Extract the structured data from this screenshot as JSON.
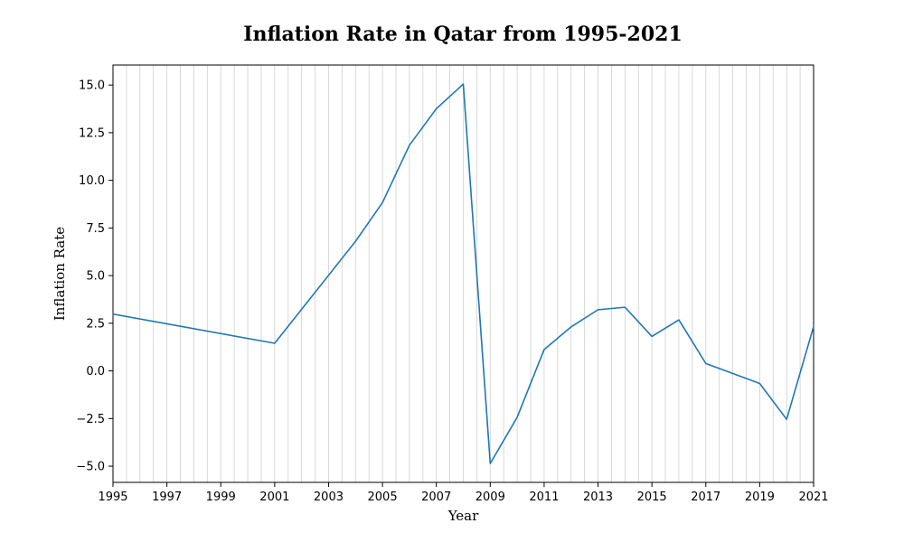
{
  "chart_data": {
    "type": "line",
    "title": "Inflation Rate in Qatar from 1995-2021",
    "xlabel": "Year",
    "ylabel": "Inflation Rate",
    "xlim": [
      1995,
      2021
    ],
    "ylim": [
      -5.85,
      16.05
    ],
    "grid": {
      "x": true,
      "y": false,
      "x_minor_step": 0.5
    },
    "x_ticks": [
      1995,
      1997,
      1999,
      2001,
      2003,
      2005,
      2007,
      2009,
      2011,
      2013,
      2015,
      2017,
      2019,
      2021
    ],
    "y_ticks": [
      -5.0,
      -2.5,
      0.0,
      2.5,
      5.0,
      7.5,
      10.0,
      12.5,
      15.0
    ],
    "y_tick_labels": [
      "−5.0",
      "−2.5",
      "0.0",
      "2.5",
      "5.0",
      "7.5",
      "10.0",
      "12.5",
      "15.0"
    ],
    "series": [
      {
        "color": "#1f77b4",
        "x": [
          1995,
          2001,
          2004,
          2005,
          2006,
          2007,
          2008,
          2009,
          2010,
          2011,
          2012,
          2013,
          2014,
          2015,
          2016,
          2017,
          2019,
          2020,
          2021
        ],
        "y": [
          2.98,
          1.45,
          6.8,
          8.83,
          11.84,
          13.76,
          15.05,
          -4.86,
          -2.43,
          1.12,
          2.31,
          3.21,
          3.34,
          1.81,
          2.68,
          0.39,
          -0.66,
          -2.54,
          2.33
        ]
      }
    ]
  }
}
